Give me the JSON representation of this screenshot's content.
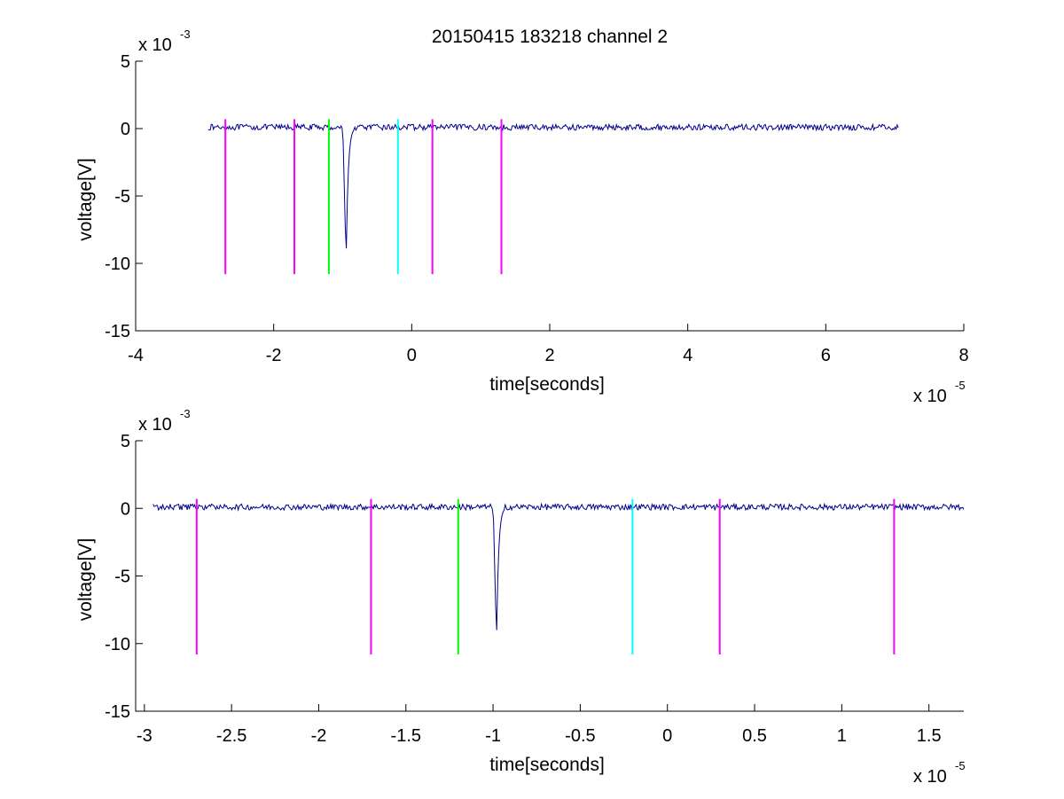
{
  "chart_data": [
    {
      "type": "line",
      "title": "20150415 183218 channel 2",
      "xlabel": "time[seconds]",
      "ylabel": "voltage[V]",
      "x_multiplier": "x 10",
      "x_exponent": "-5",
      "y_multiplier": "x 10",
      "y_exponent": "-3",
      "xlim": [
        -4,
        8
      ],
      "ylim": [
        -15,
        5
      ],
      "xticks": [
        -4,
        -2,
        0,
        2,
        4,
        6,
        8
      ],
      "xtick_labels": [
        "-4",
        "-2",
        "0",
        "2",
        "4",
        "6",
        "8"
      ],
      "yticks": [
        5,
        0,
        -5,
        -10,
        -15
      ],
      "ytick_labels": [
        "5",
        "0",
        "-5",
        "-10",
        "-15"
      ],
      "signal": {
        "color": "#00008b",
        "x_range": [
          -2.95,
          7.05
        ],
        "baseline": 0.1,
        "noise": 0.22,
        "pulse_center": -0.95,
        "pulse_min": -9.9
      },
      "markers": [
        {
          "x": -2.7,
          "color": "#ff00ff",
          "y_top": 0.7,
          "y_bottom": -10.8
        },
        {
          "x": -1.7,
          "color": "#ff00ff",
          "y_top": 0.7,
          "y_bottom": -10.8
        },
        {
          "x": -1.2,
          "color": "#00ff00",
          "y_top": 0.7,
          "y_bottom": -10.8
        },
        {
          "x": -0.2,
          "color": "#00ffff",
          "y_top": 0.7,
          "y_bottom": -10.8
        },
        {
          "x": 0.3,
          "color": "#ff00ff",
          "y_top": 0.7,
          "y_bottom": -10.8
        },
        {
          "x": 1.3,
          "color": "#ff00ff",
          "y_top": 0.7,
          "y_bottom": -10.8
        }
      ]
    },
    {
      "type": "line",
      "xlabel": "time[seconds]",
      "ylabel": "voltage[V]",
      "x_multiplier": "x 10",
      "x_exponent": "-5",
      "y_multiplier": "x 10",
      "y_exponent": "-3",
      "xlim": [
        -3.05,
        1.7
      ],
      "ylim": [
        -15,
        5
      ],
      "xticks": [
        -3,
        -2.5,
        -2,
        -1.5,
        -1,
        -0.5,
        0,
        0.5,
        1,
        1.5
      ],
      "xtick_labels": [
        "-3",
        "-2.5",
        "-2",
        "-1.5",
        "-1",
        "-0.5",
        "0",
        "0.5",
        "1",
        "1.5"
      ],
      "yticks": [
        5,
        0,
        -5,
        -10,
        -15
      ],
      "ytick_labels": [
        "5",
        "0",
        "-5",
        "-10",
        "-15"
      ],
      "signal": {
        "color": "#00008b",
        "x_range": [
          -2.95,
          1.7
        ],
        "baseline": 0.1,
        "noise": 0.22,
        "pulse_center": -0.98,
        "pulse_min": -9.9
      },
      "markers": [
        {
          "x": -2.7,
          "color": "#ff00ff",
          "y_top": 0.7,
          "y_bottom": -10.8
        },
        {
          "x": -1.7,
          "color": "#ff00ff",
          "y_top": 0.7,
          "y_bottom": -10.8
        },
        {
          "x": -1.2,
          "color": "#00ff00",
          "y_top": 0.7,
          "y_bottom": -10.8
        },
        {
          "x": -0.2,
          "color": "#00ffff",
          "y_top": 0.7,
          "y_bottom": -10.8
        },
        {
          "x": 0.3,
          "color": "#ff00ff",
          "y_top": 0.7,
          "y_bottom": -10.8
        },
        {
          "x": 1.3,
          "color": "#ff00ff",
          "y_top": 0.7,
          "y_bottom": -10.8
        }
      ]
    }
  ]
}
